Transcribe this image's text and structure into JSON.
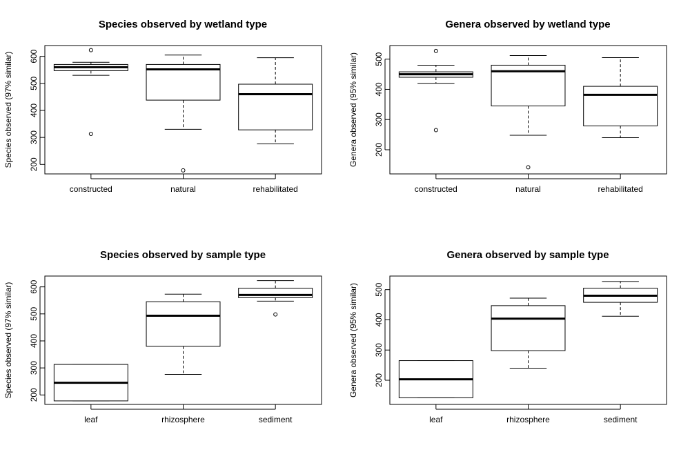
{
  "chart_data": [
    {
      "type": "boxplot",
      "title": "Species observed by wetland type",
      "ylabel": "Species observed (97% similar)",
      "xlabel": "",
      "ylim": [
        165,
        640
      ],
      "yticks": [
        "200",
        "300",
        "400",
        "500",
        "600"
      ],
      "categories": [
        "constructed",
        "natural",
        "rehabilitated"
      ],
      "boxes": [
        {
          "min": 530,
          "q1": 547,
          "median": 560,
          "q3": 570,
          "max": 578,
          "outliers": [
            623,
            313
          ]
        },
        {
          "min": 330,
          "q1": 438,
          "median": 552,
          "q3": 570,
          "max": 605,
          "outliers": [
            178
          ]
        },
        {
          "min": 276,
          "q1": 328,
          "median": 460,
          "q3": 497,
          "max": 595,
          "outliers": []
        }
      ]
    },
    {
      "type": "boxplot",
      "title": "Genera observed by wetland type",
      "ylabel": "Genera observed (95% similar)",
      "xlabel": "",
      "ylim": [
        120,
        545
      ],
      "yticks": [
        "200",
        "300",
        "400",
        "500"
      ],
      "categories": [
        "constructed",
        "natural",
        "rehabilitated"
      ],
      "boxes": [
        {
          "min": 420,
          "q1": 440,
          "median": 450,
          "q3": 458,
          "max": 480,
          "outliers": [
            527,
            265
          ]
        },
        {
          "min": 248,
          "q1": 345,
          "median": 460,
          "q3": 480,
          "max": 512,
          "outliers": [
            142
          ]
        },
        {
          "min": 240,
          "q1": 279,
          "median": 382,
          "q3": 410,
          "max": 505,
          "outliers": []
        }
      ]
    },
    {
      "type": "boxplot",
      "title": "Species observed by sample type",
      "ylabel": "Species observed (97% similar)",
      "xlabel": "",
      "ylim": [
        165,
        640
      ],
      "yticks": [
        "200",
        "300",
        "400",
        "500",
        "600"
      ],
      "categories": [
        "leaf",
        "rhizosphere",
        "sediment"
      ],
      "boxes": [
        {
          "min": 178,
          "q1": 178,
          "median": 245,
          "q3": 313,
          "max": 313,
          "outliers": []
        },
        {
          "min": 276,
          "q1": 380,
          "median": 493,
          "q3": 545,
          "max": 573,
          "outliers": []
        },
        {
          "min": 547,
          "q1": 560,
          "median": 570,
          "q3": 595,
          "max": 623,
          "outliers": [
            498
          ]
        }
      ]
    },
    {
      "type": "boxplot",
      "title": "Genera observed by sample type",
      "ylabel": "Genera observed (95% similar)",
      "xlabel": "",
      "ylim": [
        120,
        545
      ],
      "yticks": [
        "200",
        "300",
        "400",
        "500"
      ],
      "categories": [
        "leaf",
        "rhizosphere",
        "sediment"
      ],
      "boxes": [
        {
          "min": 142,
          "q1": 142,
          "median": 203,
          "q3": 265,
          "max": 265,
          "outliers": []
        },
        {
          "min": 240,
          "q1": 298,
          "median": 404,
          "q3": 447,
          "max": 472,
          "outliers": []
        },
        {
          "min": 412,
          "q1": 458,
          "median": 480,
          "q3": 505,
          "max": 527,
          "outliers": []
        }
      ]
    }
  ]
}
